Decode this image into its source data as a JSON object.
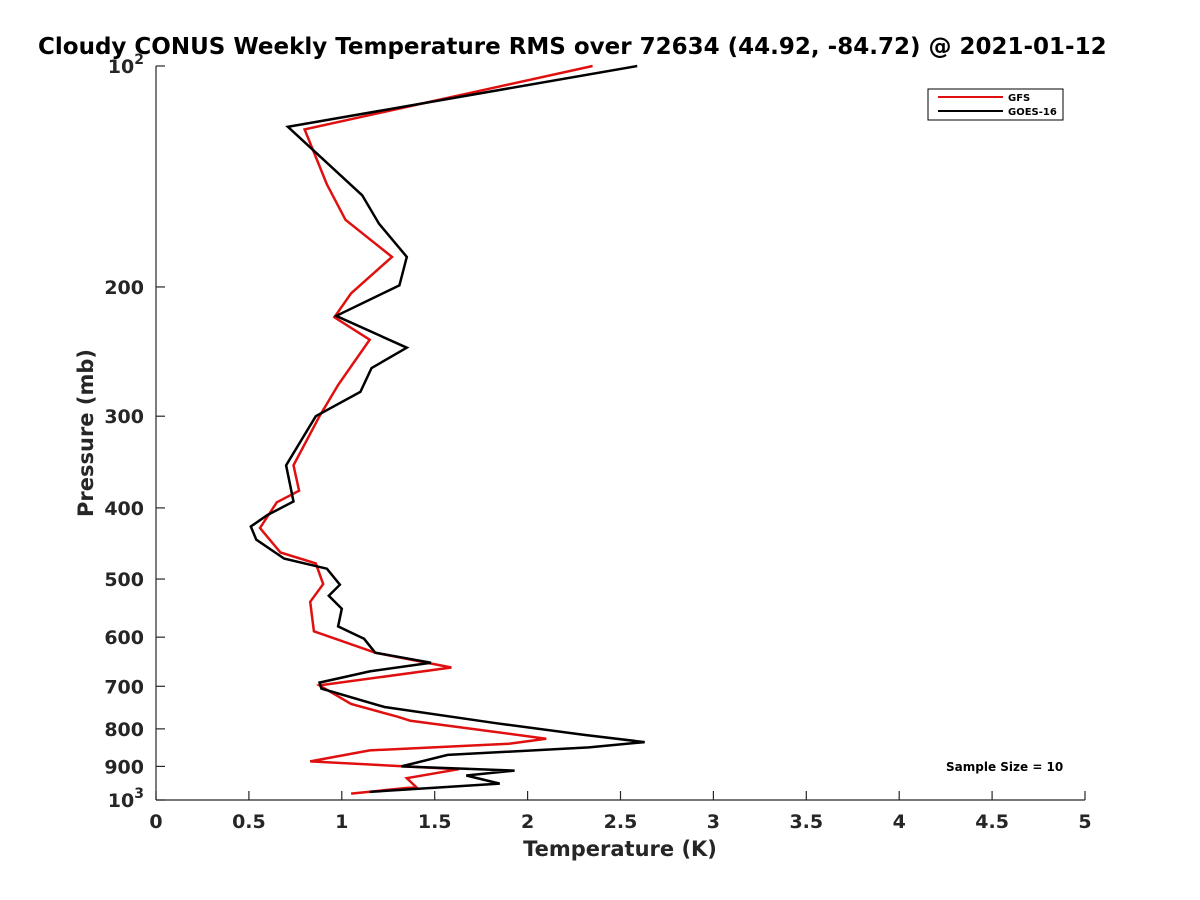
{
  "chart_data": {
    "type": "line",
    "title": "Cloudy CONUS Weekly Temperature RMS over 72634 (44.92, -84.72) @ 2021-01-12",
    "xlabel": "Temperature (K)",
    "ylabel": "Pressure (mb)",
    "xlim": [
      0,
      5
    ],
    "ylim": [
      100,
      1000
    ],
    "y_scale": "log",
    "y_reversed": true,
    "x_ticks": [
      0,
      0.5,
      1,
      1.5,
      2,
      2.5,
      3,
      3.5,
      4,
      4.5,
      5
    ],
    "x_tick_labels": [
      "0",
      "0.5",
      "1",
      "1.5",
      "2",
      "2.5",
      "3",
      "3.5",
      "4",
      "4.5",
      "5"
    ],
    "y_ticks": [
      {
        "value": 100,
        "base": "10",
        "exp": "2"
      },
      {
        "value": 200,
        "label": "200"
      },
      {
        "value": 300,
        "label": "300"
      },
      {
        "value": 400,
        "label": "400"
      },
      {
        "value": 500,
        "label": "500"
      },
      {
        "value": 600,
        "label": "600"
      },
      {
        "value": 700,
        "label": "700"
      },
      {
        "value": 800,
        "label": "800"
      },
      {
        "value": 900,
        "label": "900"
      },
      {
        "value": 1000,
        "base": "10",
        "exp": "3"
      }
    ],
    "grid": false,
    "legend_position": "top-right",
    "series": [
      {
        "name": "GFS",
        "color": "#e01010",
        "points": [
          [
            2.35,
            100
          ],
          [
            0.8,
            122
          ],
          [
            0.92,
            145
          ],
          [
            1.02,
            162
          ],
          [
            1.27,
            182
          ],
          [
            1.05,
            204
          ],
          [
            0.96,
            220
          ],
          [
            1.15,
            236
          ],
          [
            0.98,
            272
          ],
          [
            0.88,
            300
          ],
          [
            0.74,
            350
          ],
          [
            0.77,
            379
          ],
          [
            0.65,
            393
          ],
          [
            0.56,
            426
          ],
          [
            0.67,
            460
          ],
          [
            0.86,
            476
          ],
          [
            0.9,
            508
          ],
          [
            0.83,
            537
          ],
          [
            0.85,
            589
          ],
          [
            1.18,
            630
          ],
          [
            1.59,
            660
          ],
          [
            0.88,
            698
          ],
          [
            1.05,
            740
          ],
          [
            1.3,
            770
          ],
          [
            1.37,
            780
          ],
          [
            2.1,
            825
          ],
          [
            1.9,
            838
          ],
          [
            1.15,
            856
          ],
          [
            0.83,
            886
          ],
          [
            1.63,
            908
          ],
          [
            1.35,
            934
          ],
          [
            1.4,
            960
          ],
          [
            1.05,
            980
          ]
        ]
      },
      {
        "name": "GOES-16",
        "color": "#000000",
        "points": [
          [
            2.59,
            100
          ],
          [
            0.71,
            121
          ],
          [
            1.11,
            150
          ],
          [
            1.2,
            164
          ],
          [
            1.35,
            182
          ],
          [
            1.31,
            199
          ],
          [
            0.97,
            219
          ],
          [
            1.35,
            242
          ],
          [
            1.16,
            258
          ],
          [
            1.1,
            278
          ],
          [
            0.86,
            300
          ],
          [
            0.7,
            350
          ],
          [
            0.74,
            392
          ],
          [
            0.6,
            409
          ],
          [
            0.51,
            424
          ],
          [
            0.54,
            442
          ],
          [
            0.69,
            469
          ],
          [
            0.92,
            484
          ],
          [
            0.99,
            509
          ],
          [
            0.93,
            527
          ],
          [
            1.0,
            549
          ],
          [
            0.98,
            580
          ],
          [
            1.12,
            603
          ],
          [
            1.18,
            630
          ],
          [
            1.48,
            650
          ],
          [
            1.15,
            668
          ],
          [
            0.88,
            692
          ],
          [
            0.89,
            705
          ],
          [
            1.23,
            747
          ],
          [
            1.83,
            786
          ],
          [
            2.3,
            815
          ],
          [
            2.63,
            834
          ],
          [
            2.33,
            848
          ],
          [
            1.57,
            868
          ],
          [
            1.32,
            900
          ],
          [
            1.93,
            912
          ],
          [
            1.67,
            926
          ],
          [
            1.85,
            950
          ],
          [
            1.15,
            975
          ]
        ]
      }
    ],
    "annotations": [
      {
        "text": "Sample Size = 10",
        "at": [
          4.3,
          900
        ]
      }
    ]
  }
}
